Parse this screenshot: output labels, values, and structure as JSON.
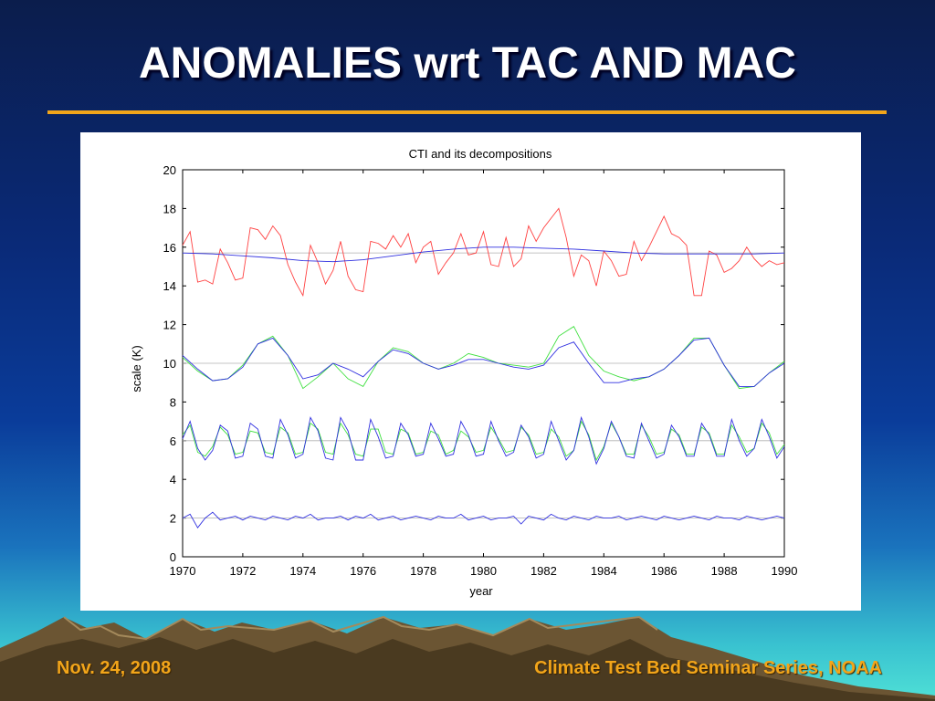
{
  "slide": {
    "title": "ANOMALIES wrt TAC AND MAC",
    "footer_date": "Nov. 24, 2008",
    "footer_series": "Climate Test Bed Seminar Series, NOAA"
  },
  "colors": {
    "title_rule": "#f2a51a",
    "footer_text": "#f2a51a",
    "series_red": "#ff4040",
    "series_blue": "#3030e0",
    "series_green": "#40e040",
    "reference_gray": "#b0b0b0"
  },
  "chart_data": {
    "type": "line",
    "title": "CTI and its decompositions",
    "xlabel": "year",
    "ylabel": "scale (K)",
    "xlim": [
      1970,
      1990
    ],
    "ylim": [
      0,
      20
    ],
    "xticks": [
      1970,
      1972,
      1974,
      1976,
      1978,
      1980,
      1982,
      1984,
      1986,
      1988,
      1990
    ],
    "yticks": [
      0,
      2,
      4,
      6,
      8,
      10,
      12,
      14,
      16,
      18,
      20
    ],
    "xtick_labels": [
      "1970",
      "1972",
      "1974",
      "1976",
      "1978",
      "1980",
      "1982",
      "1984",
      "1986",
      "1988",
      "1990"
    ],
    "ytick_labels": [
      "0",
      "2",
      "4",
      "6",
      "8",
      "10",
      "12",
      "14",
      "16",
      "18",
      "20"
    ],
    "reference_lines": [
      15.7,
      10,
      6,
      2
    ],
    "grid": false,
    "legend": "none",
    "series": [
      {
        "color": "#ff4040",
        "x": [
          1970,
          1970.25,
          1970.5,
          1970.75,
          1971,
          1971.25,
          1971.5,
          1971.75,
          1972,
          1972.25,
          1972.5,
          1972.75,
          1973,
          1973.25,
          1973.5,
          1973.75,
          1974,
          1974.25,
          1974.5,
          1974.75,
          1975,
          1975.25,
          1975.5,
          1975.75,
          1976,
          1976.25,
          1976.5,
          1976.75,
          1977,
          1977.25,
          1977.5,
          1977.75,
          1978,
          1978.25,
          1978.5,
          1978.75,
          1979,
          1979.25,
          1979.5,
          1979.75,
          1980,
          1980.25,
          1980.5,
          1980.75,
          1981,
          1981.25,
          1981.5,
          1981.75,
          1982,
          1982.25,
          1982.5,
          1982.75,
          1983,
          1983.25,
          1983.5,
          1983.75,
          1984,
          1984.25,
          1984.5,
          1984.75,
          1985,
          1985.25,
          1985.5,
          1985.75,
          1986,
          1986.25,
          1986.5,
          1986.75,
          1987,
          1987.25,
          1987.5,
          1987.75,
          1988,
          1988.25,
          1988.5,
          1988.75,
          1989,
          1989.25,
          1989.5,
          1989.75,
          1990
        ],
        "y": [
          16.1,
          16.8,
          14.2,
          14.3,
          14.1,
          15.9,
          15.2,
          14.3,
          14.4,
          17.0,
          16.9,
          16.4,
          17.1,
          16.6,
          15.1,
          14.2,
          13.5,
          16.1,
          15.2,
          14.1,
          14.8,
          16.3,
          14.5,
          13.8,
          13.7,
          16.3,
          16.2,
          15.9,
          16.6,
          16.0,
          16.7,
          15.2,
          16.0,
          16.3,
          14.6,
          15.2,
          15.7,
          16.7,
          15.6,
          15.7,
          16.8,
          15.1,
          15.0,
          16.5,
          15.0,
          15.4,
          17.1,
          16.3,
          17.0,
          17.5,
          18.0,
          16.5,
          14.5,
          15.6,
          15.3,
          14.0,
          15.8,
          15.3,
          14.5,
          14.6,
          16.3,
          15.3,
          16.0,
          16.8,
          17.6,
          16.7,
          16.5,
          16.1,
          13.5,
          13.5,
          15.8,
          15.6,
          14.7,
          14.9,
          15.3,
          16.0,
          15.4,
          15.0,
          15.3,
          15.1,
          15.2
        ]
      },
      {
        "color": "#3030e0",
        "x": [
          1970,
          1971,
          1972,
          1973,
          1974,
          1975,
          1976,
          1977,
          1978,
          1979,
          1980,
          1981,
          1982,
          1983,
          1984,
          1985,
          1986,
          1987,
          1988,
          1989,
          1990
        ],
        "y": [
          15.7,
          15.65,
          15.55,
          15.45,
          15.3,
          15.25,
          15.35,
          15.55,
          15.75,
          15.9,
          16.0,
          16.0,
          15.95,
          15.9,
          15.8,
          15.7,
          15.65,
          15.65,
          15.65,
          15.65,
          15.7
        ]
      },
      {
        "color": "#40e040",
        "x": [
          1970,
          1970.5,
          1971,
          1971.5,
          1972,
          1972.5,
          1973,
          1973.5,
          1974,
          1974.5,
          1975,
          1975.5,
          1976,
          1976.5,
          1977,
          1977.5,
          1978,
          1978.5,
          1979,
          1979.5,
          1980,
          1980.5,
          1981,
          1981.5,
          1982,
          1982.5,
          1983,
          1983.5,
          1984,
          1984.5,
          1985,
          1985.5,
          1986,
          1986.5,
          1987,
          1987.5,
          1988,
          1988.5,
          1989,
          1989.5,
          1990
        ],
        "y": [
          10.3,
          9.6,
          9.1,
          9.2,
          9.9,
          11.0,
          11.4,
          10.4,
          8.7,
          9.3,
          10.0,
          9.2,
          8.8,
          10.1,
          10.8,
          10.6,
          10.0,
          9.7,
          10.0,
          10.5,
          10.3,
          10.0,
          9.9,
          9.8,
          10.0,
          11.4,
          11.9,
          10.4,
          9.6,
          9.3,
          9.1,
          9.3,
          9.7,
          10.4,
          11.3,
          11.3,
          9.9,
          8.7,
          8.8,
          9.5,
          10.1
        ]
      },
      {
        "color": "#3030e0",
        "x": [
          1970,
          1970.5,
          1971,
          1971.5,
          1972,
          1972.5,
          1973,
          1973.5,
          1974,
          1974.5,
          1975,
          1975.5,
          1976,
          1976.5,
          1977,
          1977.5,
          1978,
          1978.5,
          1979,
          1979.5,
          1980,
          1980.5,
          1981,
          1981.5,
          1982,
          1982.5,
          1983,
          1983.5,
          1984,
          1984.5,
          1985,
          1985.5,
          1986,
          1986.5,
          1987,
          1987.5,
          1988,
          1988.5,
          1989,
          1989.5,
          1990
        ],
        "y": [
          10.4,
          9.7,
          9.1,
          9.2,
          9.8,
          11.0,
          11.3,
          10.4,
          9.2,
          9.4,
          10.0,
          9.7,
          9.3,
          10.1,
          10.7,
          10.5,
          10.0,
          9.7,
          9.9,
          10.2,
          10.2,
          10.0,
          9.8,
          9.7,
          9.9,
          10.8,
          11.1,
          10.0,
          9.0,
          9.0,
          9.2,
          9.3,
          9.7,
          10.4,
          11.2,
          11.3,
          9.9,
          8.8,
          8.8,
          9.5,
          10.0
        ]
      },
      {
        "color": "#40e040",
        "x": [
          1970,
          1970.25,
          1970.5,
          1970.75,
          1971,
          1971.25,
          1971.5,
          1971.75,
          1972,
          1972.25,
          1972.5,
          1972.75,
          1973,
          1973.25,
          1973.5,
          1973.75,
          1974,
          1974.25,
          1974.5,
          1974.75,
          1975,
          1975.25,
          1975.5,
          1975.75,
          1976,
          1976.25,
          1976.5,
          1976.75,
          1977,
          1977.25,
          1977.5,
          1977.75,
          1978,
          1978.25,
          1978.5,
          1978.75,
          1979,
          1979.25,
          1979.5,
          1979.75,
          1980,
          1980.25,
          1980.5,
          1980.75,
          1981,
          1981.25,
          1981.5,
          1981.75,
          1982,
          1982.25,
          1982.5,
          1982.75,
          1983,
          1983.25,
          1983.5,
          1983.75,
          1984,
          1984.25,
          1984.5,
          1984.75,
          1985,
          1985.25,
          1985.5,
          1985.75,
          1986,
          1986.25,
          1986.5,
          1986.75,
          1987,
          1987.25,
          1987.5,
          1987.75,
          1988,
          1988.25,
          1988.5,
          1988.75,
          1989,
          1989.25,
          1989.5,
          1989.75,
          1990
        ],
        "y": [
          6.3,
          6.8,
          5.4,
          5.2,
          5.7,
          6.7,
          6.3,
          5.3,
          5.4,
          6.5,
          6.4,
          5.4,
          5.3,
          6.7,
          6.4,
          5.3,
          5.4,
          6.9,
          6.6,
          5.4,
          5.3,
          6.9,
          6.3,
          5.3,
          5.2,
          6.6,
          6.6,
          5.4,
          5.3,
          6.6,
          6.4,
          5.3,
          5.4,
          6.5,
          6.3,
          5.3,
          5.5,
          6.5,
          6.2,
          5.4,
          5.5,
          6.7,
          6.1,
          5.4,
          5.5,
          6.7,
          6.3,
          5.3,
          5.4,
          6.6,
          6.2,
          5.2,
          5.5,
          7.0,
          6.3,
          5.0,
          5.7,
          6.9,
          6.2,
          5.3,
          5.3,
          6.8,
          6.2,
          5.3,
          5.4,
          6.6,
          6.3,
          5.3,
          5.3,
          6.7,
          6.4,
          5.3,
          5.3,
          6.8,
          6.2,
          5.4,
          5.6,
          6.9,
          6.4,
          5.3,
          5.8
        ]
      },
      {
        "color": "#3030e0",
        "x": [
          1970,
          1970.25,
          1970.5,
          1970.75,
          1971,
          1971.25,
          1971.5,
          1971.75,
          1972,
          1972.25,
          1972.5,
          1972.75,
          1973,
          1973.25,
          1973.5,
          1973.75,
          1974,
          1974.25,
          1974.5,
          1974.75,
          1975,
          1975.25,
          1975.5,
          1975.75,
          1976,
          1976.25,
          1976.5,
          1976.75,
          1977,
          1977.25,
          1977.5,
          1977.75,
          1978,
          1978.25,
          1978.5,
          1978.75,
          1979,
          1979.25,
          1979.5,
          1979.75,
          1980,
          1980.25,
          1980.5,
          1980.75,
          1981,
          1981.25,
          1981.5,
          1981.75,
          1982,
          1982.25,
          1982.5,
          1982.75,
          1983,
          1983.25,
          1983.5,
          1983.75,
          1984,
          1984.25,
          1984.5,
          1984.75,
          1985,
          1985.25,
          1985.5,
          1985.75,
          1986,
          1986.25,
          1986.5,
          1986.75,
          1987,
          1987.25,
          1987.5,
          1987.75,
          1988,
          1988.25,
          1988.5,
          1988.75,
          1989,
          1989.25,
          1989.5,
          1989.75,
          1990
        ],
        "y": [
          6.1,
          7.0,
          5.6,
          5.0,
          5.5,
          6.8,
          6.5,
          5.1,
          5.2,
          6.9,
          6.6,
          5.2,
          5.1,
          7.1,
          6.3,
          5.1,
          5.3,
          7.2,
          6.5,
          5.1,
          5.0,
          7.2,
          6.5,
          5.0,
          5.0,
          7.1,
          6.2,
          5.1,
          5.2,
          6.9,
          6.3,
          5.2,
          5.3,
          6.9,
          6.1,
          5.2,
          5.3,
          7.0,
          6.3,
          5.2,
          5.3,
          7.0,
          6.0,
          5.2,
          5.4,
          6.8,
          6.2,
          5.1,
          5.3,
          7.0,
          6.0,
          5.0,
          5.5,
          7.2,
          6.2,
          4.8,
          5.6,
          7.0,
          6.2,
          5.2,
          5.1,
          6.9,
          6.0,
          5.1,
          5.3,
          6.8,
          6.2,
          5.2,
          5.2,
          6.9,
          6.3,
          5.2,
          5.2,
          7.1,
          6.0,
          5.2,
          5.6,
          7.1,
          6.2,
          5.1,
          5.7
        ]
      },
      {
        "color": "#3030e0",
        "x": [
          1970,
          1970.25,
          1970.5,
          1970.75,
          1971,
          1971.25,
          1971.5,
          1971.75,
          1972,
          1972.25,
          1972.5,
          1972.75,
          1973,
          1973.25,
          1973.5,
          1973.75,
          1974,
          1974.25,
          1974.5,
          1974.75,
          1975,
          1975.25,
          1975.5,
          1975.75,
          1976,
          1976.25,
          1976.5,
          1976.75,
          1977,
          1977.25,
          1977.5,
          1977.75,
          1978,
          1978.25,
          1978.5,
          1978.75,
          1979,
          1979.25,
          1979.5,
          1979.75,
          1980,
          1980.25,
          1980.5,
          1980.75,
          1981,
          1981.25,
          1981.5,
          1981.75,
          1982,
          1982.25,
          1982.5,
          1982.75,
          1983,
          1983.25,
          1983.5,
          1983.75,
          1984,
          1984.25,
          1984.5,
          1984.75,
          1985,
          1985.25,
          1985.5,
          1985.75,
          1986,
          1986.25,
          1986.5,
          1986.75,
          1987,
          1987.25,
          1987.5,
          1987.75,
          1988,
          1988.25,
          1988.5,
          1988.75,
          1989,
          1989.25,
          1989.5,
          1989.75,
          1990
        ],
        "y": [
          2.0,
          2.2,
          1.5,
          2.0,
          2.3,
          1.9,
          2.0,
          2.1,
          1.9,
          2.1,
          2.0,
          1.9,
          2.1,
          2.0,
          1.9,
          2.1,
          2.0,
          2.2,
          1.9,
          2.0,
          2.0,
          2.1,
          1.9,
          2.1,
          2.0,
          2.2,
          1.9,
          2.0,
          2.1,
          1.9,
          2.0,
          2.1,
          2.0,
          1.9,
          2.1,
          2.0,
          2.0,
          2.2,
          1.9,
          2.0,
          2.1,
          1.9,
          2.0,
          2.0,
          2.1,
          1.7,
          2.1,
          2.0,
          1.9,
          2.2,
          2.0,
          1.9,
          2.1,
          2.0,
          1.9,
          2.1,
          2.0,
          2.0,
          2.1,
          1.9,
          2.0,
          2.1,
          2.0,
          1.9,
          2.1,
          2.0,
          1.9,
          2.0,
          2.1,
          2.0,
          1.9,
          2.1,
          2.0,
          2.0,
          1.9,
          2.1,
          2.0,
          1.9,
          2.0,
          2.1,
          2.0
        ]
      }
    ]
  }
}
